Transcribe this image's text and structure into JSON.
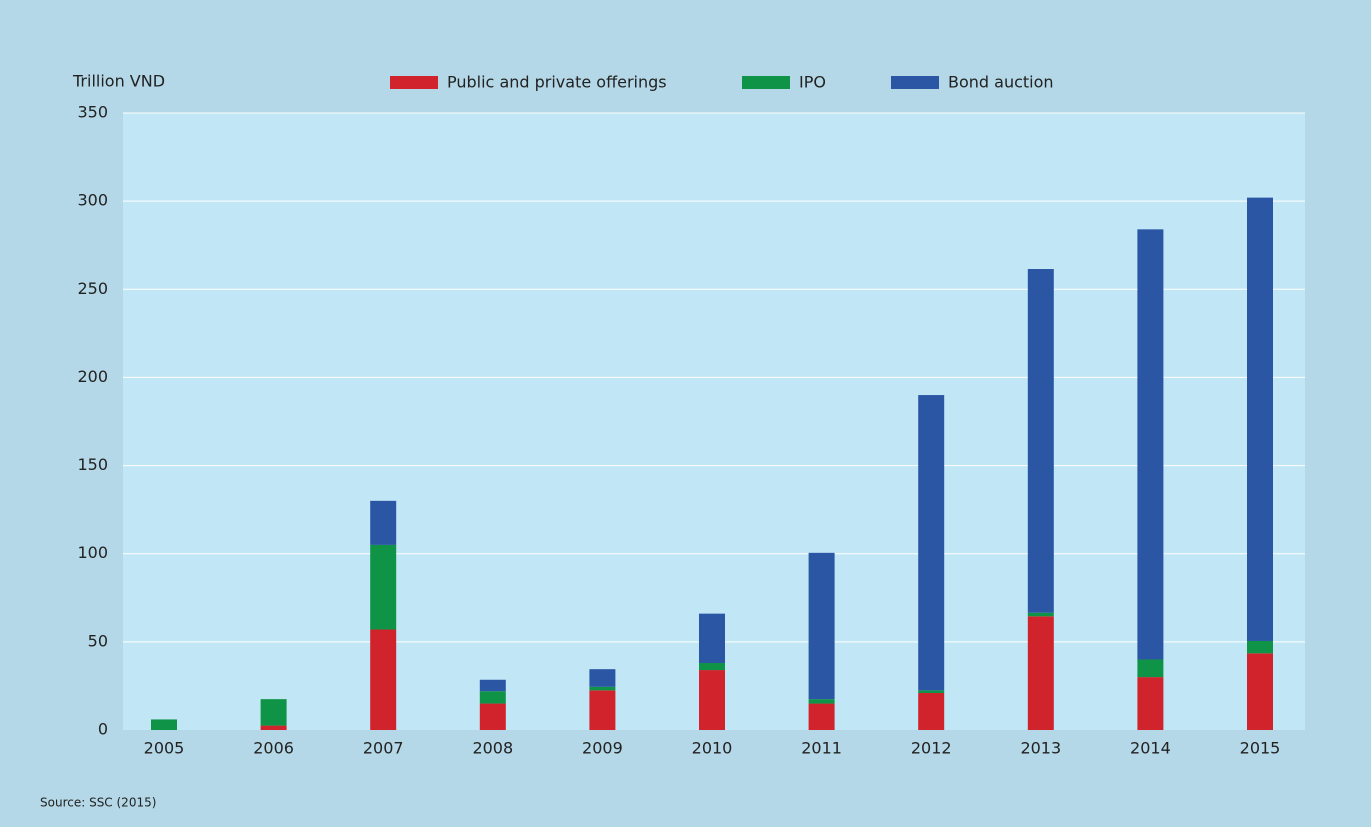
{
  "chart_data": {
    "type": "stacked_bar",
    "y_label": "Trillion VND",
    "source": "Source: SSC (2015)",
    "categories": [
      "2005",
      "2006",
      "2007",
      "2008",
      "2009",
      "2010",
      "2011",
      "2012",
      "2013",
      "2014",
      "2015"
    ],
    "series": [
      {
        "name": "Public and private offerings",
        "color": "#d0232b",
        "values": [
          0,
          2.5,
          57,
          15,
          22.5,
          34,
          15,
          21,
          64.5,
          30,
          43.5
        ]
      },
      {
        "name": "IPO",
        "color": "#0f9447",
        "values": [
          6,
          15,
          48,
          7,
          2,
          4,
          2.5,
          1.5,
          2,
          10,
          7
        ]
      },
      {
        "name": "Bond auction",
        "color": "#2b56a4",
        "values": [
          0,
          0,
          25,
          6.5,
          10,
          28,
          83,
          167.5,
          195,
          244,
          251.5
        ]
      }
    ],
    "ylim": [
      0,
      350
    ],
    "yticks": [
      0,
      50,
      100,
      150,
      200,
      250,
      300,
      350
    ],
    "grid": true
  }
}
